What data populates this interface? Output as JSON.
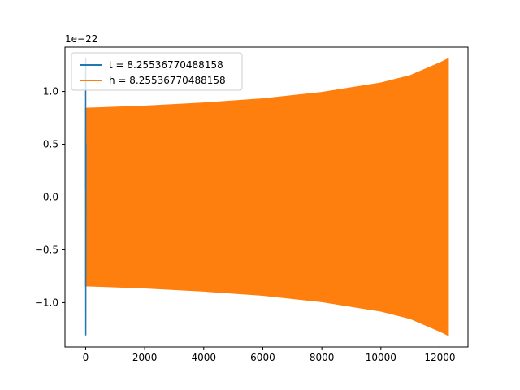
{
  "chart_data": {
    "type": "line",
    "title": "",
    "xlabel": "",
    "ylabel": "",
    "y_offset_label": "1e−22",
    "xlim": [
      -700,
      12950
    ],
    "ylim": [
      -1.42,
      1.42
    ],
    "xticks": [
      {
        "value": 0,
        "label": "0"
      },
      {
        "value": 2000,
        "label": "2000"
      },
      {
        "value": 4000,
        "label": "4000"
      },
      {
        "value": 6000,
        "label": "6000"
      },
      {
        "value": 8000,
        "label": "8000"
      },
      {
        "value": 10000,
        "label": "10000"
      },
      {
        "value": 12000,
        "label": "12000"
      }
    ],
    "yticks": [
      {
        "value": -1.0,
        "label": "−1.0"
      },
      {
        "value": -0.5,
        "label": "−0.5"
      },
      {
        "value": 0.0,
        "label": "0.0"
      },
      {
        "value": 0.5,
        "label": "0.5"
      },
      {
        "value": 1.0,
        "label": "1.0"
      }
    ],
    "grid": false,
    "legend_position": "upper-left",
    "series": [
      {
        "name": "t = 8.25536770488158",
        "color": "#1f77b4",
        "description_points": [
          {
            "x": 0,
            "y": 0.08
          },
          {
            "x": 2,
            "y": 1.32
          },
          {
            "x": 5,
            "y": -1.31
          },
          {
            "x": 10,
            "y": 0.5
          }
        ]
      },
      {
        "name": "h = 8.25536770488158",
        "color": "#ff7f0e",
        "envelope": [
          {
            "x": 0,
            "upper": 0.84,
            "lower": -0.84
          },
          {
            "x": 2000,
            "upper": 0.86,
            "lower": -0.86
          },
          {
            "x": 4000,
            "upper": 0.89,
            "lower": -0.89
          },
          {
            "x": 6000,
            "upper": 0.93,
            "lower": -0.93
          },
          {
            "x": 8000,
            "upper": 0.99,
            "lower": -0.99
          },
          {
            "x": 10000,
            "upper": 1.08,
            "lower": -1.08
          },
          {
            "x": 11000,
            "upper": 1.15,
            "lower": -1.15
          },
          {
            "x": 12000,
            "upper": 1.27,
            "lower": -1.27
          },
          {
            "x": 12280,
            "upper": 1.31,
            "lower": -1.31
          }
        ],
        "x_end": 12280
      }
    ]
  }
}
